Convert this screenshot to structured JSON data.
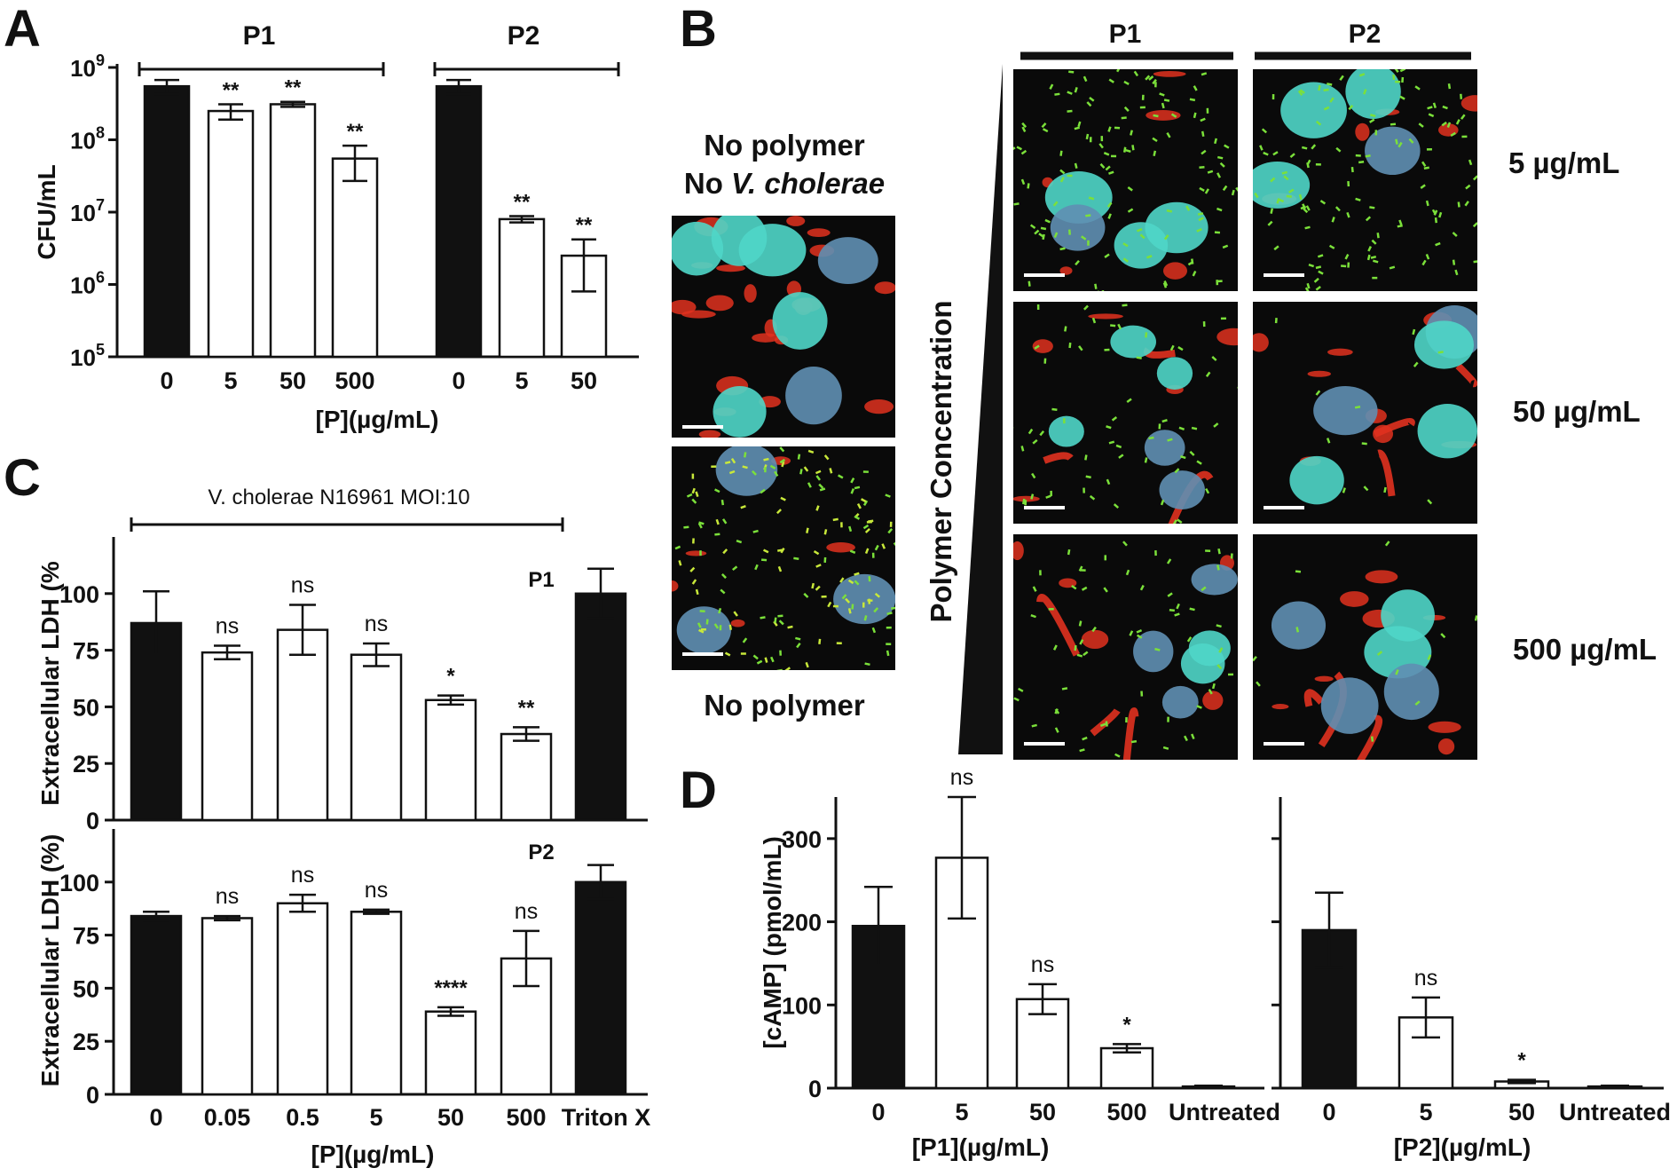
{
  "panel_labels": {
    "a": "A",
    "b": "B",
    "c": "C",
    "d": "D"
  },
  "chart_data": [
    {
      "panel": "A",
      "type": "bar",
      "yscale": "log",
      "ylim": [
        100000,
        1000000000
      ],
      "yticks": [
        {
          "base": "10",
          "exp": "5"
        },
        {
          "base": "10",
          "exp": "6"
        },
        {
          "base": "10",
          "exp": "7"
        },
        {
          "base": "10",
          "exp": "8"
        },
        {
          "base": "10",
          "exp": "9"
        }
      ],
      "ylabel": "CFU/mL",
      "xlabel": "[P](µg/mL)",
      "groups": [
        {
          "label": "P1",
          "bars": [
            {
              "x": "0",
              "value": 550000000,
              "err": 120000000,
              "fill": "black",
              "sig": ""
            },
            {
              "x": "5",
              "value": 250000000,
              "err": 60000000,
              "fill": "white",
              "sig": "**"
            },
            {
              "x": "50",
              "value": 310000000,
              "err": 25000000,
              "fill": "white",
              "sig": "**"
            },
            {
              "x": "500",
              "value": 55000000,
              "err": 28000000,
              "fill": "white",
              "sig": "**"
            }
          ]
        },
        {
          "label": "P2",
          "bars": [
            {
              "x": "0",
              "value": 550000000,
              "err": 120000000,
              "fill": "black",
              "sig": ""
            },
            {
              "x": "5",
              "value": 8000000,
              "err": 800000,
              "fill": "white",
              "sig": "**"
            },
            {
              "x": "50",
              "value": 2500000,
              "err": 1700000,
              "fill": "white",
              "sig": "**"
            }
          ]
        }
      ]
    },
    {
      "panel": "C",
      "type": "bar",
      "title": "V. cholerae N16961 MOI:10",
      "categories": [
        "0",
        "0.05",
        "0.5",
        "5",
        "50",
        "500",
        "Triton X"
      ],
      "ylabel": "Extracellular LDH (%)",
      "ylabel_top": "Extracellular LDH (%",
      "xlabel": "[P](µg/mL)",
      "ylim": [
        0,
        125
      ],
      "yticks": [
        "0",
        "25",
        "50",
        "75",
        "100"
      ],
      "series": [
        {
          "name": "P1",
          "values": [
            87,
            74,
            84,
            73,
            53,
            38,
            100
          ],
          "err": [
            14,
            3,
            11,
            5,
            2,
            3,
            11
          ],
          "fills": [
            "black",
            "white",
            "white",
            "white",
            "white",
            "white",
            "black"
          ],
          "sig": [
            "",
            "ns",
            "ns",
            "ns",
            "*",
            "**",
            ""
          ]
        },
        {
          "name": "P2",
          "values": [
            84,
            83,
            90,
            86,
            39,
            64,
            100
          ],
          "err": [
            2,
            1,
            4,
            1,
            2,
            13,
            8
          ],
          "fills": [
            "black",
            "white",
            "white",
            "white",
            "white",
            "white",
            "black"
          ],
          "sig": [
            "",
            "ns",
            "ns",
            "ns",
            "****",
            "ns",
            ""
          ]
        }
      ]
    },
    {
      "panel": "D",
      "type": "bar",
      "ylabel": "[cAMP] (pmol/mL)",
      "ylim": [
        0,
        350
      ],
      "yticks": [
        "0",
        "100",
        "200",
        "300"
      ],
      "subplots": [
        {
          "xlabel": "[P1](µg/mL)",
          "categories": [
            "0",
            "5",
            "50",
            "500",
            "Untreated"
          ],
          "values": [
            195,
            277,
            107,
            48,
            2
          ],
          "err": [
            47,
            73,
            18,
            5,
            1
          ],
          "fills": [
            "black",
            "white",
            "white",
            "white",
            "white"
          ],
          "sig": [
            "",
            "ns",
            "ns",
            "*",
            ""
          ]
        },
        {
          "xlabel": "[P2](µg/mL)",
          "categories": [
            "0",
            "5",
            "50",
            "Untreated"
          ],
          "values": [
            190,
            85,
            8,
            2
          ],
          "err": [
            45,
            24,
            2,
            1
          ],
          "fills": [
            "black",
            "white",
            "white",
            "white"
          ],
          "sig": [
            "",
            "ns",
            "*",
            ""
          ]
        }
      ]
    }
  ],
  "panel_b": {
    "controls": {
      "top_label_line1": "No polymer",
      "top_label_line2_prefix": "No ",
      "top_label_line2_italic": "V. cholerae",
      "bottom_label": "No polymer"
    },
    "columns": [
      "P1",
      "P2"
    ],
    "axis_label": "Polymer Concentration",
    "rows": [
      "5 µg/mL",
      "50 µg/mL",
      "500 µg/mL"
    ],
    "colors": {
      "background": "#0a0a0a",
      "nucleus": "#4fd6c8",
      "nucleus_dim": "#5f8fb3",
      "bacteria": "#7be03a",
      "bacteria_yellow": "#c8e83a",
      "membrane": "#e0311f"
    }
  }
}
